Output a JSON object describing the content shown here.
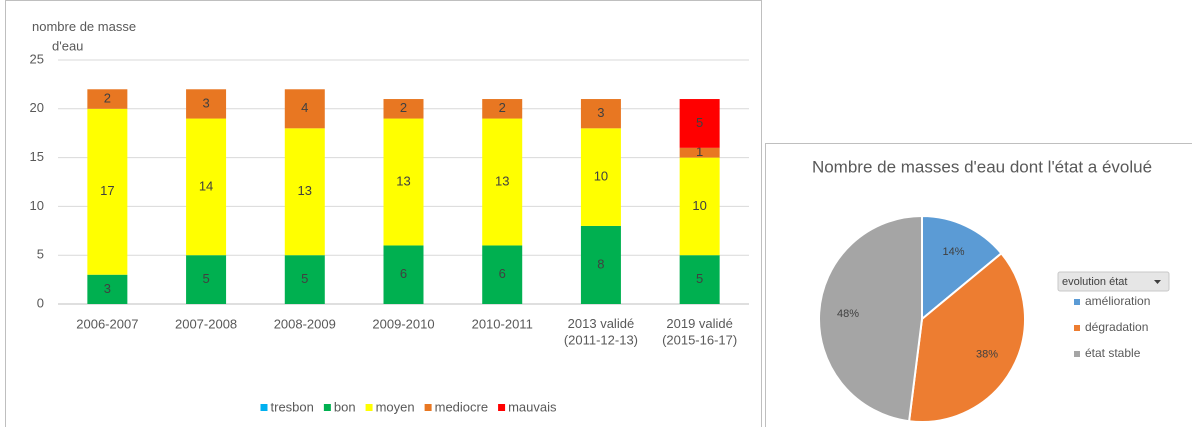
{
  "chart_data": [
    {
      "type": "bar",
      "stacked": true,
      "y_label": "nombre de masse d'eau",
      "categories": [
        "2006-2007",
        "2007-2008",
        "2008-2009",
        "2009-2010",
        "2010-2011",
        "2013 validé\n(2011-12-13)",
        "2019 validé\n(2015-16-17)"
      ],
      "series": [
        {
          "name": "tresbon",
          "color": "#00b0f0",
          "values": [
            null,
            null,
            null,
            null,
            null,
            null,
            null
          ]
        },
        {
          "name": "bon",
          "color": "#00b050",
          "values": [
            3,
            5,
            5,
            6,
            6,
            8,
            5
          ]
        },
        {
          "name": "moyen",
          "color": "#ffff00",
          "values": [
            17,
            14,
            13,
            13,
            13,
            10,
            10
          ]
        },
        {
          "name": "mediocre",
          "color": "#e87722",
          "values": [
            2,
            3,
            4,
            2,
            2,
            3,
            1
          ]
        },
        {
          "name": "mauvais",
          "color": "#ff0000",
          "values": [
            null,
            null,
            null,
            null,
            null,
            null,
            5
          ]
        }
      ],
      "ylim": [
        0,
        25
      ],
      "yticks": [
        0,
        5,
        10,
        15,
        20,
        25
      ],
      "grid": true,
      "legend": "bottom"
    },
    {
      "type": "pie",
      "title": "Nombre de masses d'eau dont l'état a évolué",
      "legend_title": "evolution état",
      "categories": [
        "amélioration",
        "dégradation",
        "état stable"
      ],
      "values": [
        14,
        38,
        48
      ],
      "value_labels": [
        "14%",
        "38%",
        "48%"
      ],
      "colors": [
        "#5b9bd5",
        "#ed7d31",
        "#a5a5a5"
      ],
      "legend": "right"
    }
  ]
}
